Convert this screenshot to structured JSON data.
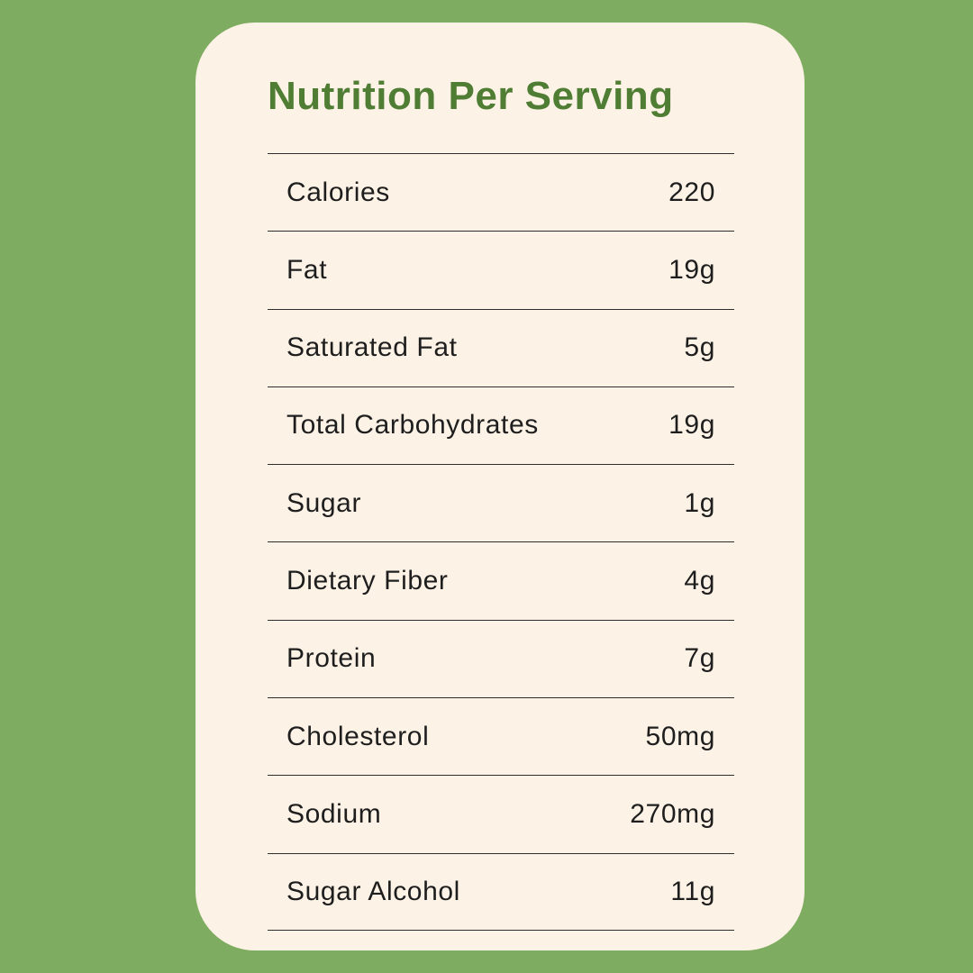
{
  "title": "Nutrition Per Serving",
  "colors": {
    "background": "#7EAC60",
    "card": "#FDF2E6",
    "title": "#4E7D33",
    "text": "#1E1E1E",
    "divider": "#2E2E2E"
  },
  "table": {
    "rows": [
      {
        "label": "Calories",
        "value": "220"
      },
      {
        "label": "Fat",
        "value": "19g"
      },
      {
        "label": "Saturated Fat",
        "value": "5g"
      },
      {
        "label": "Total Carbohydrates",
        "value": "19g"
      },
      {
        "label": "Sugar",
        "value": "1g"
      },
      {
        "label": "Dietary Fiber",
        "value": "4g"
      },
      {
        "label": "Protein",
        "value": "7g"
      },
      {
        "label": "Cholesterol",
        "value": "50mg"
      },
      {
        "label": "Sodium",
        "value": "270mg"
      },
      {
        "label": "Sugar Alcohol",
        "value": "11g"
      }
    ]
  }
}
